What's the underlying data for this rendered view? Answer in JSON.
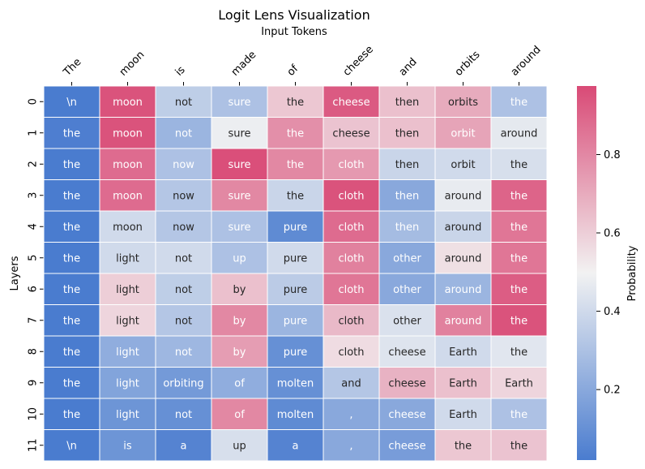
{
  "chart_data": {
    "type": "heatmap",
    "title": "Logit Lens Visualization",
    "xlabel": "Input Tokens",
    "ylabel": "Layers",
    "x_tick_position": "top",
    "x_tick_rotation_deg": 45,
    "x": [
      "The",
      "moon",
      "is",
      "made",
      "of",
      "cheese",
      "and",
      "orbits",
      "around"
    ],
    "y": [
      "0",
      "1",
      "2",
      "3",
      "4",
      "5",
      "6",
      "7",
      "8",
      "9",
      "10",
      "11"
    ],
    "cell_labels": [
      [
        "\\n",
        "moon",
        "not",
        "sure",
        "the",
        "cheese",
        "then",
        "orbits",
        "the"
      ],
      [
        "the",
        "moon",
        "not",
        "sure",
        "the",
        "cheese",
        "then",
        "orbit",
        "around"
      ],
      [
        "the",
        "moon",
        "now",
        "sure",
        "the",
        "cloth",
        "then",
        "orbit",
        "the"
      ],
      [
        "the",
        "moon",
        "now",
        "sure",
        "the",
        "cloth",
        "then",
        "around",
        "the"
      ],
      [
        "the",
        "moon",
        "now",
        "sure",
        "pure",
        "cloth",
        "then",
        "around",
        "the"
      ],
      [
        "the",
        "light",
        "not",
        "up",
        "pure",
        "cloth",
        "other",
        "around",
        "the"
      ],
      [
        "the",
        "light",
        "not",
        "by",
        "pure",
        "cloth",
        "other",
        "around",
        "the"
      ],
      [
        "the",
        "light",
        "not",
        "by",
        "pure",
        "cloth",
        "other",
        "around",
        "the"
      ],
      [
        "the",
        "light",
        "not",
        "by",
        "pure",
        "cloth",
        "cheese",
        "Earth",
        "the"
      ],
      [
        "the",
        "light",
        "orbiting",
        "of",
        "molten",
        "and",
        "cheese",
        "Earth",
        "Earth"
      ],
      [
        "the",
        "light",
        "not",
        "of",
        "molten",
        ",",
        "cheese",
        "Earth",
        "the"
      ],
      [
        "\\n",
        "is",
        "a",
        "up",
        "a",
        ",",
        "cheese",
        "the",
        "the"
      ]
    ],
    "values": [
      [
        0.02,
        0.95,
        0.35,
        0.3,
        0.62,
        0.93,
        0.64,
        0.7,
        0.3
      ],
      [
        0.03,
        0.95,
        0.25,
        0.48,
        0.78,
        0.63,
        0.64,
        0.72,
        0.46
      ],
      [
        0.02,
        0.88,
        0.3,
        0.96,
        0.8,
        0.75,
        0.38,
        0.4,
        0.42
      ],
      [
        0.02,
        0.88,
        0.32,
        0.8,
        0.38,
        0.95,
        0.2,
        0.47,
        0.9
      ],
      [
        0.02,
        0.4,
        0.32,
        0.3,
        0.08,
        0.88,
        0.28,
        0.38,
        0.85
      ],
      [
        0.02,
        0.4,
        0.4,
        0.3,
        0.4,
        0.82,
        0.2,
        0.55,
        0.85
      ],
      [
        0.02,
        0.6,
        0.35,
        0.64,
        0.34,
        0.85,
        0.2,
        0.25,
        0.92
      ],
      [
        0.02,
        0.58,
        0.32,
        0.8,
        0.25,
        0.66,
        0.43,
        0.82,
        0.95
      ],
      [
        0.02,
        0.22,
        0.26,
        0.74,
        0.1,
        0.56,
        0.44,
        0.4,
        0.45
      ],
      [
        0.02,
        0.18,
        0.14,
        0.22,
        0.1,
        0.32,
        0.68,
        0.64,
        0.58
      ],
      [
        0.02,
        0.12,
        0.1,
        0.8,
        0.08,
        0.2,
        0.2,
        0.4,
        0.3
      ],
      [
        0.02,
        0.12,
        0.05,
        0.42,
        0.05,
        0.2,
        0.15,
        0.62,
        0.63
      ]
    ],
    "colorbar": {
      "label": "Probability",
      "ticks": [
        "0.2",
        "0.4",
        "0.6",
        "0.8"
      ],
      "tick_values": [
        0.2,
        0.4,
        0.6,
        0.8
      ],
      "vmin": 0.02,
      "vmax": 0.975
    },
    "colormap": {
      "low": "#4a7ccf",
      "mid": "#f2f2f2",
      "high": "#d94a76"
    },
    "cell_text_colors": {
      "light": "#ffffff",
      "dark": "#262626"
    },
    "grid_line_color": "#ffffff"
  }
}
